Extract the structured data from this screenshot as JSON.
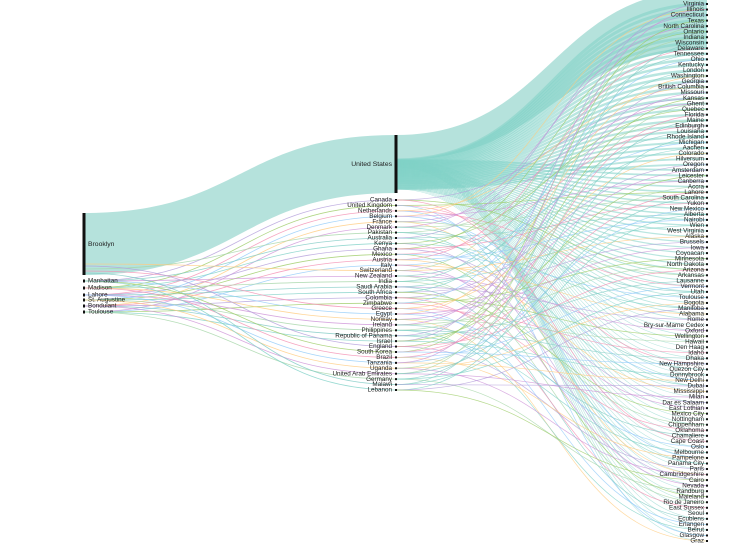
{
  "left": [
    "Brooklyn",
    "Manhattan",
    "Madison",
    "Lahore",
    "St. Augustine",
    "Bondulant",
    "Toulouse"
  ],
  "middle": [
    "United States",
    "Canada",
    "United Kingdom",
    "Netherlands",
    "Belgium",
    "France",
    "Denmark",
    "Pakistan",
    "Australia",
    "Kenya",
    "Ghana",
    "Mexico",
    "Austria",
    "Italy",
    "Switzerland",
    "New Zealand",
    "India",
    "Saudi Arabia",
    "South Africa",
    "Colombia",
    "Zimbabwe",
    "Greece",
    "Egypt",
    "Norway",
    "Ireland",
    "Philippines",
    "Republic of Panama",
    "Israel",
    "England",
    "South Korea",
    "Brazil",
    "Tanzania",
    "Uganda",
    "United Arab Emirates",
    "Germany",
    "Malawi",
    "Lebanon"
  ],
  "right": [
    "Virginia",
    "Illinois",
    "Connecticut",
    "Texas",
    "North Carolina",
    "Ontario",
    "Indiana",
    "Wisconsin",
    "Delaware",
    "Tennessee",
    "Ohio",
    "Kentucky",
    "London",
    "Washington",
    "Georgia",
    "British Columbia",
    "Missouri",
    "Kansas",
    "Ghent",
    "Quebec",
    "Florida",
    "Maine",
    "Edinburgh",
    "Louisiana",
    "Rhode Island",
    "Michigan",
    "Aachen",
    "Colorado",
    "Hilversum",
    "Oregon",
    "Amsterdam",
    "Leicester",
    "Canberra",
    "Accra",
    "Lahore",
    "South Carolina",
    "Yukon",
    "New Mexico",
    "Alberta",
    "Nairobi",
    "Wien",
    "West Virginia",
    "Alaska",
    "Brussels",
    "Iowa",
    "Coyoacan",
    "Minnesota",
    "North Dakota",
    "Arizona",
    "Arkansas",
    "Lausanne",
    "Vermont",
    "Utah",
    "Toulouse",
    "Bogota",
    "Manitoba",
    "Alabama",
    "Rome",
    "Bry-sur-Marne Cedex",
    "Oxford",
    "Wellington",
    "Hawaii",
    "Den Haag",
    "Idaho",
    "Dhaka",
    "New Hampshire",
    "Quezon City",
    "Donnybrook",
    "New Delhi",
    "Dubai",
    "Mississippi",
    "Milan",
    "Dar es Salaam",
    "East Lothian",
    "Mexico City",
    "Nottingham",
    "Chippenham",
    "Oklahoma",
    "Chamaliere",
    "Cape Coast",
    "Oslo",
    "Melbourne",
    "Pampelone",
    "Panama City",
    "Paris",
    "Cambridgeshire",
    "Cairo",
    "Nevada",
    "Randburg",
    "Maieland",
    "Rio de Janeiro",
    "East Sussex",
    "Seoul",
    "Ecublens",
    "Erlangen",
    "Beirut",
    "Glasgow",
    "Graz"
  ]
}
